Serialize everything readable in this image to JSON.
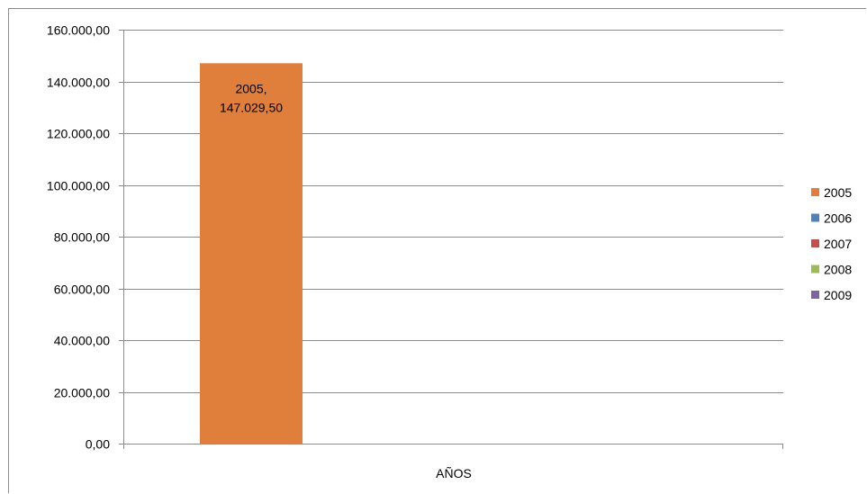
{
  "chart_data": {
    "type": "bar",
    "title": "",
    "xlabel": "AÑOS",
    "ylabel": "",
    "ylim": [
      0,
      160000
    ],
    "y_ticks": [
      {
        "value": 0,
        "label": "0,00"
      },
      {
        "value": 20000,
        "label": "20.000,00"
      },
      {
        "value": 40000,
        "label": "40.000,00"
      },
      {
        "value": 60000,
        "label": "60.000,00"
      },
      {
        "value": 80000,
        "label": "80.000,00"
      },
      {
        "value": 100000,
        "label": "100.000,00"
      },
      {
        "value": 120000,
        "label": "120.000,00"
      },
      {
        "value": 140000,
        "label": "140.000,00"
      },
      {
        "value": 160000,
        "label": "160.000,00"
      }
    ],
    "categories": [
      "AÑOS"
    ],
    "grid": true,
    "legend_position": "right",
    "series": [
      {
        "name": "2005",
        "values": [
          147029.5
        ],
        "color": "#e07f3c",
        "data_label": "2005, 147.029,50"
      },
      {
        "name": "2006",
        "values": [
          0
        ],
        "color": "#4f81bd",
        "data_label": ""
      },
      {
        "name": "2007",
        "values": [
          0
        ],
        "color": "#c0504d",
        "data_label": ""
      },
      {
        "name": "2008",
        "values": [
          0
        ],
        "color": "#9bbb59",
        "data_label": ""
      },
      {
        "name": "2009",
        "values": [
          0
        ],
        "color": "#8064a2",
        "data_label": ""
      }
    ]
  }
}
